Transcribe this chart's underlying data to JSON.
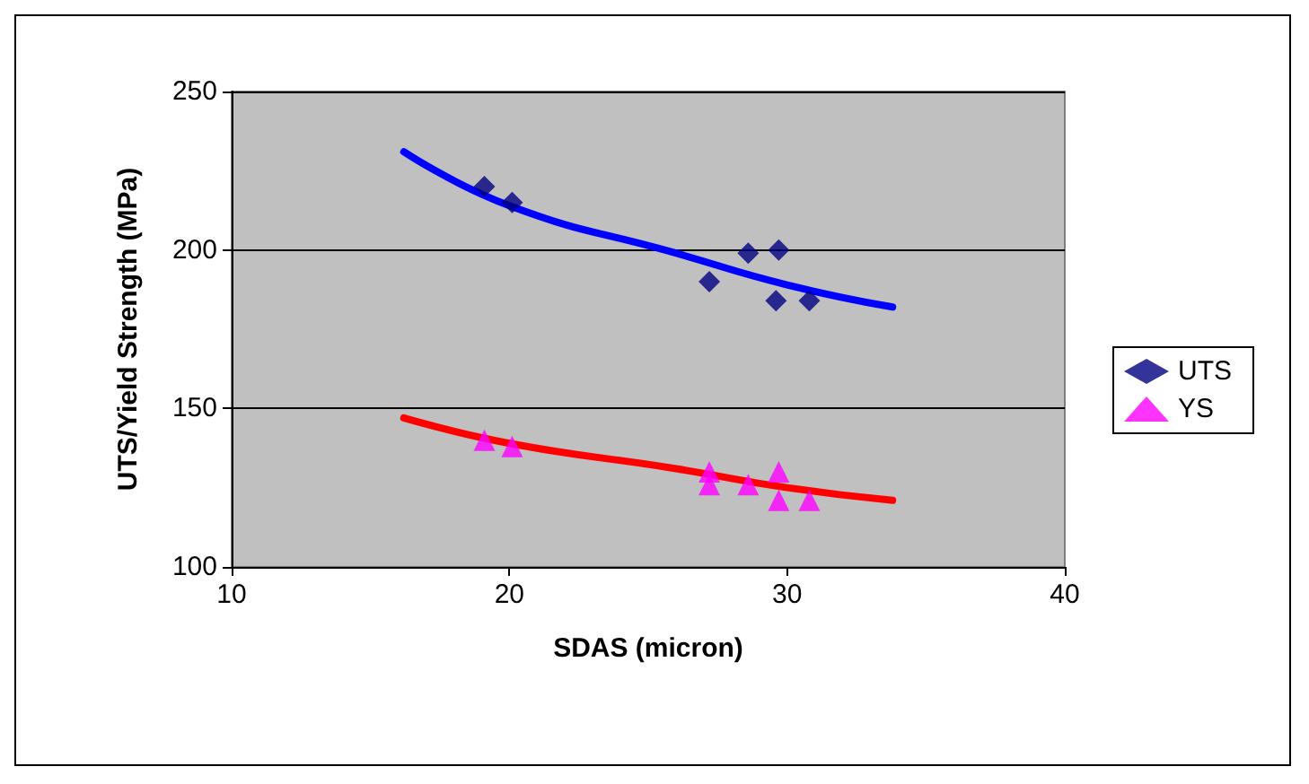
{
  "chart_data": {
    "type": "scatter",
    "xlabel": "SDAS (micron)",
    "ylabel": "UTS/Yield Strength (MPa)",
    "xlim": [
      10,
      40
    ],
    "xticks": [
      10,
      20,
      30,
      40
    ],
    "ylim": [
      100,
      250
    ],
    "yticks": [
      100,
      150,
      200,
      250
    ],
    "grid": "y",
    "legend": "right",
    "series": [
      {
        "name": "UTS",
        "color": "#000080",
        "marker": "diamond",
        "x": [
          19.1,
          20.1,
          27.2,
          28.6,
          29.7,
          29.6,
          30.8
        ],
        "values": [
          220,
          215,
          190,
          199,
          200,
          184,
          184
        ]
      },
      {
        "name": "YS",
        "color": "#ff00ff",
        "marker": "triangle",
        "x": [
          19.1,
          20.1,
          27.2,
          27.2,
          28.6,
          29.7,
          29.7,
          30.8
        ],
        "values": [
          140,
          138,
          130,
          126,
          126,
          130,
          121,
          121
        ]
      },
      {
        "type": "line",
        "color": "#0000ff",
        "marker": "none",
        "x": [
          16.2,
          20,
          26,
          30,
          33.8
        ],
        "values": [
          231,
          214,
          199,
          189,
          182
        ]
      },
      {
        "type": "line",
        "color": "#ff0000",
        "marker": "none",
        "x": [
          16.2,
          20,
          26,
          30,
          33.8
        ],
        "values": [
          147,
          139,
          131,
          125,
          121
        ]
      }
    ]
  }
}
